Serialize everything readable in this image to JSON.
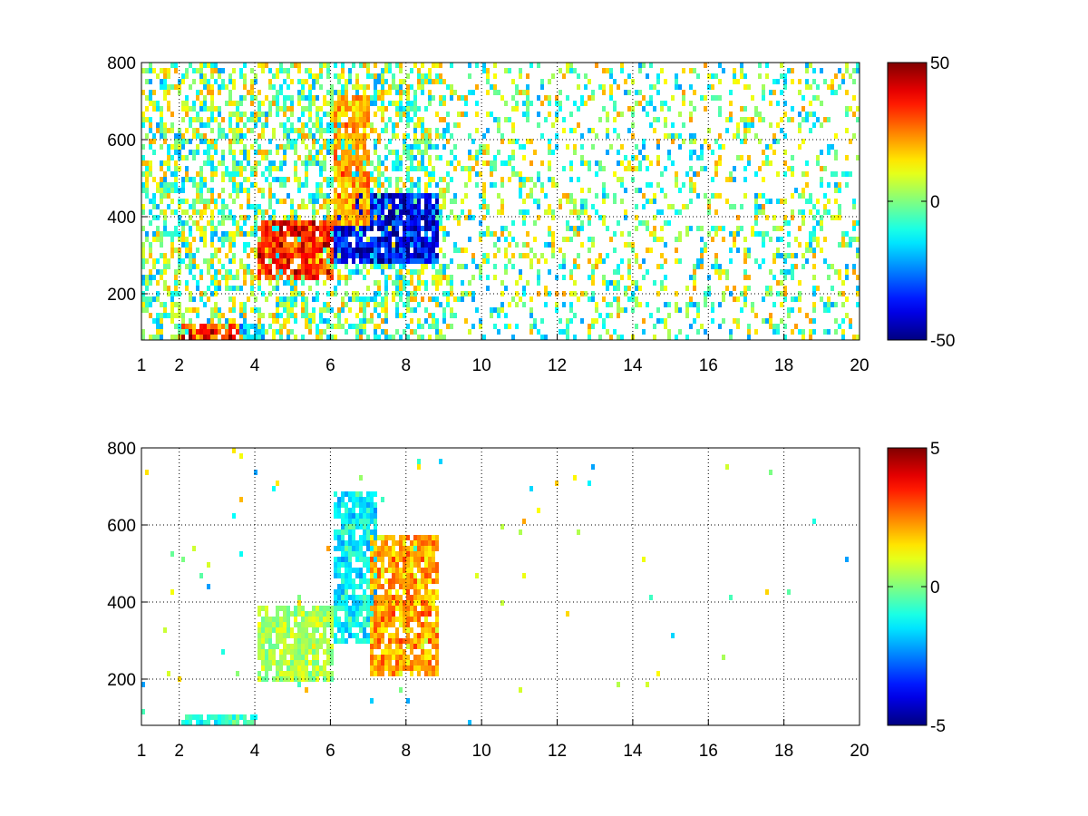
{
  "chart_data": [
    {
      "type": "heatmap",
      "title": "",
      "xlabel": "",
      "ylabel": "",
      "xlim": [
        1,
        20
      ],
      "ylim": [
        80,
        800
      ],
      "x_ticks": [
        1,
        2,
        4,
        6,
        8,
        10,
        12,
        14,
        16,
        18,
        20
      ],
      "y_ticks": [
        200,
        400,
        600,
        800
      ],
      "grid": true,
      "colormap": "jet",
      "clim": [
        -50,
        50
      ],
      "colorbar_ticks": [
        -50,
        0,
        50
      ],
      "features": [
        {
          "kind": "blob",
          "x": [
            4.0,
            6.0
          ],
          "y": [
            240,
            400
          ],
          "value": 40
        },
        {
          "kind": "blob",
          "x": [
            6.0,
            8.8
          ],
          "y": [
            280,
            470
          ],
          "value": -45
        },
        {
          "kind": "blob",
          "x": [
            6.0,
            7.0
          ],
          "y": [
            380,
            720
          ],
          "value": 25
        },
        {
          "kind": "blob",
          "x": [
            2.0,
            3.5
          ],
          "y": [
            80,
            130
          ],
          "value": 40
        },
        {
          "kind": "blob",
          "x": [
            3.5,
            4.2
          ],
          "y": [
            80,
            130
          ],
          "value": -20
        }
      ],
      "noise_density": 0.35
    },
    {
      "type": "heatmap",
      "title": "",
      "xlabel": "",
      "ylabel": "",
      "xlim": [
        1,
        20
      ],
      "ylim": [
        80,
        800
      ],
      "x_ticks": [
        1,
        2,
        4,
        6,
        8,
        10,
        12,
        14,
        16,
        18,
        20
      ],
      "y_ticks": [
        200,
        400,
        600,
        800
      ],
      "grid": true,
      "colormap": "jet",
      "clim": [
        -5,
        5
      ],
      "colorbar_ticks": [
        -5,
        0,
        5
      ],
      "features": [
        {
          "kind": "blob",
          "x": [
            4.0,
            6.0
          ],
          "y": [
            200,
            400
          ],
          "value": 0.5
        },
        {
          "kind": "blob",
          "x": [
            6.0,
            7.2
          ],
          "y": [
            300,
            700
          ],
          "value": -1.5
        },
        {
          "kind": "blob",
          "x": [
            7.0,
            8.8
          ],
          "y": [
            220,
            580
          ],
          "value": 2.5
        },
        {
          "kind": "blob",
          "x": [
            2.0,
            4.0
          ],
          "y": [
            80,
            120
          ],
          "value": -1
        }
      ],
      "noise_density": 0.01
    }
  ]
}
